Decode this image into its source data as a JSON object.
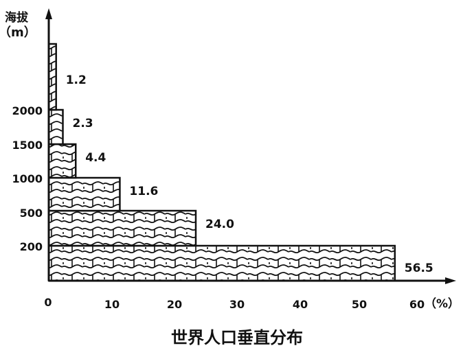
{
  "chart_data": {
    "type": "bar",
    "orientation": "horizontal",
    "title": "世界人口垂直分布",
    "ylabel": "海拔",
    "ylabel_unit": "（m）",
    "xlabel_unit": "（%）",
    "y_ticks": [
      "200",
      "500",
      "1000",
      "1500",
      "2000"
    ],
    "x_ticks": [
      "0",
      "10",
      "20",
      "30",
      "40",
      "50",
      "60"
    ],
    "xlim": [
      0,
      60
    ],
    "categories": [
      "<200",
      "200-500",
      "500-1000",
      "1000-1500",
      "1500-2000",
      ">2000"
    ],
    "values": [
      56.5,
      24.0,
      11.6,
      4.4,
      2.3,
      1.2
    ],
    "value_labels": [
      "56.5",
      "24.0",
      "11.6",
      "4.4",
      "2.3",
      "1.2"
    ],
    "grid": false,
    "fill": "wave-hatch"
  }
}
